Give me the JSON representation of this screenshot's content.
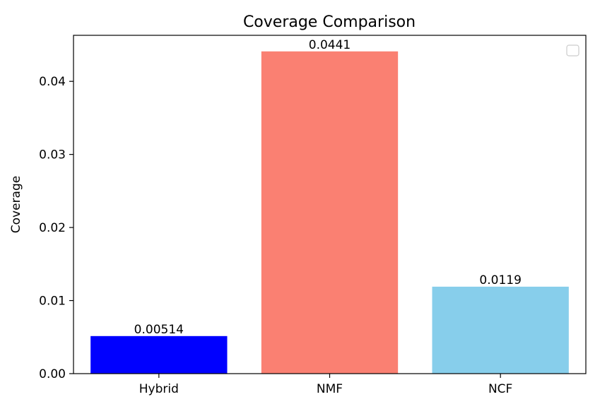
{
  "chart_data": {
    "type": "bar",
    "title": "Coverage Comparison",
    "xlabel": "",
    "ylabel": "Coverage",
    "categories": [
      "Hybrid",
      "NMF",
      "NCF"
    ],
    "values": [
      0.00514,
      0.0441,
      0.0119
    ],
    "value_labels": [
      "0.00514",
      "0.0441",
      "0.0119"
    ],
    "colors": [
      "#0000ff",
      "#fa8072",
      "#87ceeb"
    ],
    "ylim": [
      0,
      0.0463
    ],
    "yticks": [
      0.0,
      0.01,
      0.02,
      0.03,
      0.04
    ],
    "ytick_labels": [
      "0.00",
      "0.01",
      "0.02",
      "0.03",
      "0.04"
    ],
    "grid": false,
    "legend": {
      "placement": "top-right",
      "entries": []
    }
  }
}
